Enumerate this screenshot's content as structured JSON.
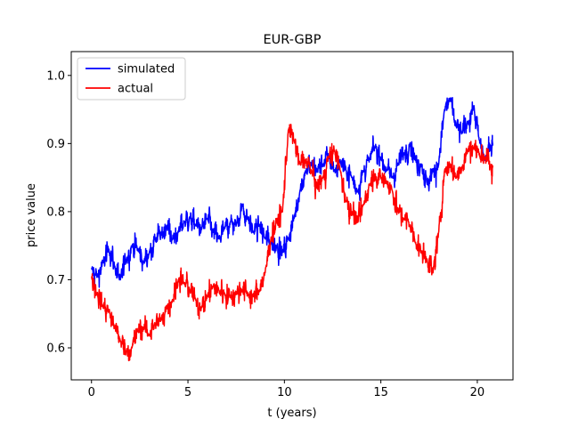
{
  "chart_data": {
    "type": "line",
    "title": "EUR-GBP",
    "xlabel": "t (years)",
    "ylabel": "price value",
    "xlim": [
      -1.05,
      21.85
    ],
    "ylim": [
      0.553,
      1.035
    ],
    "xticks": [
      0,
      5,
      10,
      15,
      20
    ],
    "yticks": [
      0.6,
      0.7,
      0.8,
      0.9,
      1.0
    ],
    "xtick_labels": [
      "0",
      "5",
      "10",
      "15",
      "20"
    ],
    "ytick_labels": [
      "0.6",
      "0.7",
      "0.8",
      "0.9",
      "1.0"
    ],
    "grid": false,
    "legend_position": "top-left",
    "series": [
      {
        "name": "simulated",
        "color": "#0000ff",
        "x": [
          0,
          0.3,
          0.6,
          0.9,
          1.2,
          1.5,
          1.8,
          2.1,
          2.4,
          2.7,
          3.0,
          3.3,
          3.6,
          3.9,
          4.2,
          4.5,
          4.8,
          5.1,
          5.4,
          5.7,
          6.0,
          6.3,
          6.6,
          6.9,
          7.2,
          7.5,
          7.8,
          8.1,
          8.4,
          8.7,
          9.0,
          9.3,
          9.6,
          9.9,
          10.2,
          10.5,
          10.8,
          11.1,
          11.4,
          11.7,
          12.0,
          12.3,
          12.6,
          12.9,
          13.2,
          13.5,
          13.8,
          14.1,
          14.4,
          14.7,
          15.0,
          15.3,
          15.6,
          15.9,
          16.2,
          16.5,
          16.8,
          17.1,
          17.4,
          17.7,
          18.0,
          18.3,
          18.6,
          18.9,
          19.2,
          19.5,
          19.8,
          20.1,
          20.4,
          20.7,
          20.8
        ],
        "y": [
          0.715,
          0.705,
          0.725,
          0.745,
          0.72,
          0.7,
          0.73,
          0.75,
          0.745,
          0.725,
          0.74,
          0.76,
          0.765,
          0.78,
          0.76,
          0.77,
          0.785,
          0.79,
          0.78,
          0.775,
          0.79,
          0.77,
          0.76,
          0.775,
          0.785,
          0.78,
          0.81,
          0.79,
          0.77,
          0.78,
          0.76,
          0.755,
          0.75,
          0.74,
          0.76,
          0.79,
          0.83,
          0.86,
          0.87,
          0.86,
          0.87,
          0.88,
          0.86,
          0.875,
          0.86,
          0.85,
          0.83,
          0.86,
          0.875,
          0.895,
          0.88,
          0.86,
          0.85,
          0.87,
          0.885,
          0.9,
          0.875,
          0.87,
          0.84,
          0.86,
          0.87,
          0.95,
          0.965,
          0.925,
          0.915,
          0.93,
          0.955,
          0.905,
          0.875,
          0.895,
          0.9
        ]
      },
      {
        "name": "actual",
        "color": "#ff0000",
        "x": [
          0,
          0.3,
          0.6,
          0.9,
          1.2,
          1.5,
          1.8,
          2.1,
          2.4,
          2.7,
          3.0,
          3.3,
          3.6,
          3.9,
          4.2,
          4.5,
          4.8,
          5.1,
          5.4,
          5.7,
          6.0,
          6.3,
          6.6,
          6.9,
          7.2,
          7.5,
          7.8,
          8.1,
          8.4,
          8.7,
          9.0,
          9.3,
          9.6,
          9.9,
          10.2,
          10.5,
          10.8,
          11.1,
          11.4,
          11.7,
          12.0,
          12.3,
          12.6,
          12.9,
          13.2,
          13.5,
          13.8,
          14.1,
          14.4,
          14.7,
          15.0,
          15.3,
          15.6,
          15.9,
          16.2,
          16.5,
          16.8,
          17.1,
          17.4,
          17.7,
          18.0,
          18.3,
          18.6,
          18.9,
          19.2,
          19.5,
          19.8,
          20.1,
          20.4,
          20.7,
          20.8
        ],
        "y": [
          0.705,
          0.68,
          0.66,
          0.655,
          0.63,
          0.61,
          0.595,
          0.6,
          0.625,
          0.63,
          0.62,
          0.635,
          0.64,
          0.66,
          0.67,
          0.7,
          0.695,
          0.685,
          0.67,
          0.66,
          0.675,
          0.69,
          0.685,
          0.68,
          0.675,
          0.68,
          0.685,
          0.68,
          0.675,
          0.685,
          0.71,
          0.76,
          0.785,
          0.8,
          0.92,
          0.905,
          0.87,
          0.875,
          0.86,
          0.835,
          0.85,
          0.88,
          0.89,
          0.86,
          0.815,
          0.8,
          0.785,
          0.81,
          0.84,
          0.855,
          0.85,
          0.845,
          0.83,
          0.8,
          0.79,
          0.78,
          0.755,
          0.74,
          0.73,
          0.71,
          0.77,
          0.86,
          0.87,
          0.85,
          0.865,
          0.89,
          0.895,
          0.885,
          0.88,
          0.865,
          0.865
        ]
      }
    ]
  }
}
